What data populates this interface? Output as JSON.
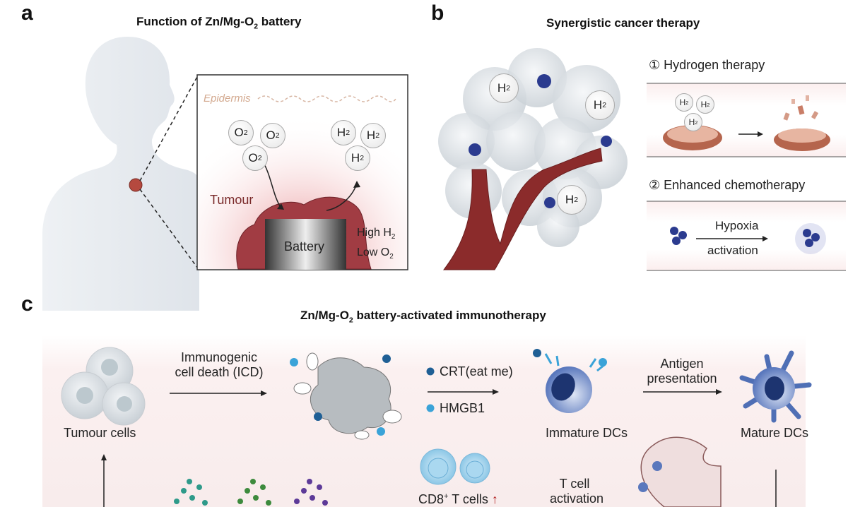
{
  "panel_a": {
    "letter": "a",
    "title_prefix": "Function of Zn/Mg-O",
    "title_sub": "2",
    "title_suffix": " battery",
    "epidermis": "Epidermis",
    "o2_label": "O",
    "h2_label": "H",
    "sub2": "2",
    "tumour": "Tumour",
    "battery": "Battery",
    "high_h2_prefix": "High H",
    "low_o2_prefix": "Low O"
  },
  "panel_b": {
    "letter": "b",
    "title": "Synergistic cancer therapy",
    "h2_label": "H",
    "sub2": "2",
    "therapy1": "① Hydrogen therapy",
    "therapy2": "② Enhanced chemotherapy",
    "hypoxia": "Hypoxia",
    "activation": "activation"
  },
  "panel_c": {
    "letter": "c",
    "title_prefix": "Zn/Mg-O",
    "title_sub": "2",
    "title_suffix": " battery-activated immunotherapy",
    "tumour_cells": "Tumour cells",
    "icd_line1": "Immunogenic",
    "icd_line2": "cell death (ICD)",
    "crt": "CRT(eat me)",
    "hmgb1": "HMGB1",
    "immature_dcs": "Immature DCs",
    "antigen_line1": "Antigen",
    "antigen_line2": "presentation",
    "mature_dcs": "Mature DCs",
    "cd8_prefix": "CD8",
    "cd8_sup": "+",
    "cd8_suffix": " T cells",
    "tcell_line1": "T cell",
    "tcell_line2": "activation"
  },
  "colors": {
    "tumour_red": "#8a2a2a",
    "vessel": "#8b2b2b",
    "crt_blue": "#1f5f95",
    "hmgb1_blue": "#3aa3d8",
    "dc_blue": "#4f6fb5",
    "up_arrow": "#b22222"
  }
}
